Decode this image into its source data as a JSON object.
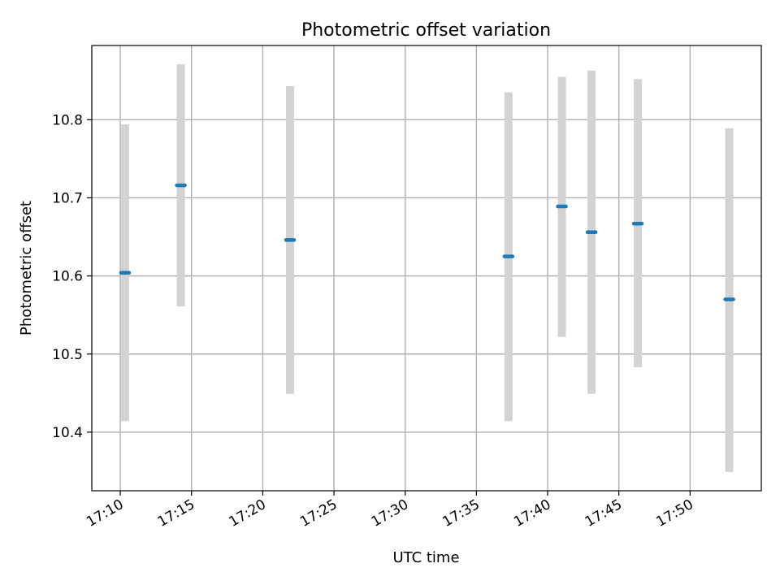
{
  "chart_data": {
    "type": "scatter",
    "title": "Photometric offset variation",
    "xlabel": "UTC time",
    "ylabel": "Photometric offset",
    "x_ticks": [
      "17:10",
      "17:15",
      "17:20",
      "17:25",
      "17:30",
      "17:35",
      "17:40",
      "17:45",
      "17:50"
    ],
    "y_ticks": [
      "10.4",
      "10.5",
      "10.6",
      "10.7",
      "10.8"
    ],
    "xlim": [
      "17:08:00",
      "17:55:00"
    ],
    "ylim": [
      10.325,
      10.895
    ],
    "grid": true,
    "colors": {
      "points": "#1f77b4",
      "errorbars": "#d3d3d3",
      "grid": "#b0b0b0"
    },
    "points": [
      {
        "time": "17:10:20",
        "value": 10.604,
        "low": 10.414,
        "high": 10.794
      },
      {
        "time": "17:14:15",
        "value": 10.716,
        "low": 10.561,
        "high": 10.871
      },
      {
        "time": "17:21:55",
        "value": 10.646,
        "low": 10.449,
        "high": 10.843
      },
      {
        "time": "17:37:15",
        "value": 10.625,
        "low": 10.414,
        "high": 10.835
      },
      {
        "time": "17:41:00",
        "value": 10.689,
        "low": 10.522,
        "high": 10.855
      },
      {
        "time": "17:43:05",
        "value": 10.656,
        "low": 10.449,
        "high": 10.863
      },
      {
        "time": "17:46:20",
        "value": 10.667,
        "low": 10.483,
        "high": 10.852
      },
      {
        "time": "17:52:45",
        "value": 10.57,
        "low": 10.349,
        "high": 10.789
      }
    ]
  }
}
